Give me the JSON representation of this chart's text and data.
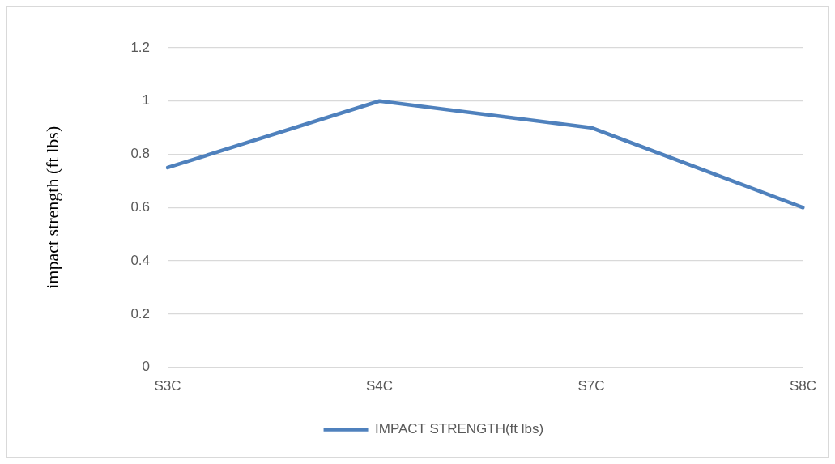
{
  "chart_data": {
    "type": "line",
    "ylabel": "impact strength (ft lbs)",
    "categories": [
      "S3C",
      "S4C",
      "S7C",
      "S8C"
    ],
    "series": [
      {
        "name": "IMPACT STRENGTH(ft lbs)",
        "color": "#4f81bd",
        "values": [
          0.75,
          1.0,
          0.9,
          0.6
        ]
      }
    ],
    "ylim": [
      0,
      1.2
    ],
    "yticks": [
      0,
      0.2,
      0.4,
      0.6,
      0.8,
      1,
      1.2
    ],
    "grid": "y",
    "legend": "bottom",
    "marker": "none",
    "line_style": "solid"
  }
}
